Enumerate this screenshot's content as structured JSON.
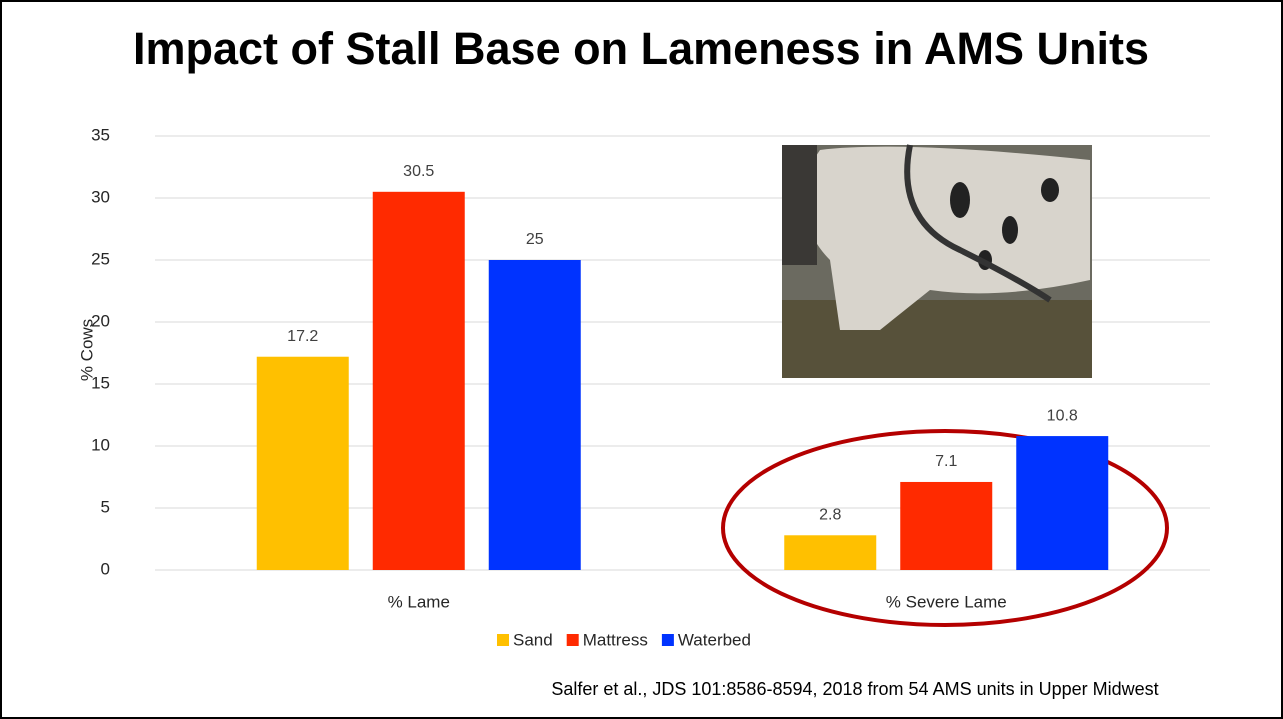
{
  "chart_data": {
    "type": "bar",
    "title": "Impact of Stall Base on Lameness in AMS Units",
    "y_label": "% Cows",
    "categories": [
      "% Lame",
      "% Severe Lame"
    ],
    "series": [
      {
        "name": "Sand",
        "color": "#ffc000",
        "values": [
          17.2,
          2.8
        ]
      },
      {
        "name": "Mattress",
        "color": "#ff2a00",
        "values": [
          30.5,
          7.1
        ]
      },
      {
        "name": "Waterbed",
        "color": "#0033ff",
        "values": [
          25,
          10.8
        ]
      }
    ],
    "ylim": [
      0,
      35
    ],
    "yticks": [
      0,
      5,
      10,
      15,
      20,
      25,
      30,
      35
    ],
    "grid": true,
    "legend": "bottom",
    "source": "Salfer et al., JDS 101:8586-8594, 2018 from 54 AMS units in Upper Midwest"
  }
}
